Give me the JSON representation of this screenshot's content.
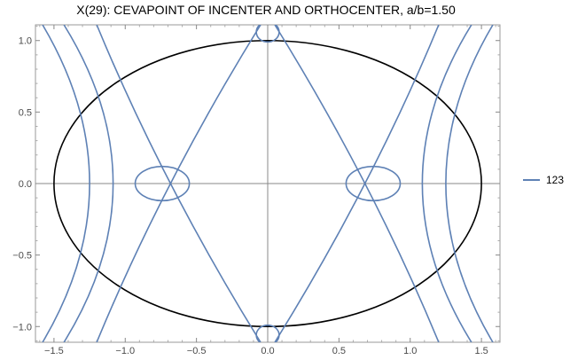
{
  "chart_data": {
    "type": "line",
    "title": "X(29): CEVAPOINT OF INCENTER AND ORTHOCENTER, a/b=1.50",
    "xlabel": "",
    "ylabel": "",
    "xlim": [
      -1.63,
      1.63
    ],
    "ylim": [
      -1.11,
      1.11
    ],
    "x_ticks": [
      {
        "value": -1.5,
        "label": "−1.5"
      },
      {
        "value": -1.0,
        "label": "−1.0"
      },
      {
        "value": -0.5,
        "label": "−0.5"
      },
      {
        "value": 0.0,
        "label": "0.0"
      },
      {
        "value": 0.5,
        "label": "0.5"
      },
      {
        "value": 1.0,
        "label": "1.0"
      },
      {
        "value": 1.5,
        "label": "1.5"
      }
    ],
    "y_ticks": [
      {
        "value": -1.0,
        "label": "−1.0"
      },
      {
        "value": -0.5,
        "label": "−0.5"
      },
      {
        "value": 0.0,
        "label": "0.0"
      },
      {
        "value": 0.5,
        "label": "0.5"
      },
      {
        "value": 1.0,
        "label": "1.0"
      }
    ],
    "grid": false,
    "legend_position": "right",
    "ellipse": {
      "a": 1.5,
      "b": 1.0,
      "color": "#000000"
    },
    "series": [
      {
        "name": "123",
        "color": "#5e81b5",
        "lines": [
          {
            "points": [
              [
                -1.58,
                1.11
              ],
              [
                -0.92,
                0.0
              ],
              [
                -1.58,
                -1.11
              ]
            ]
          },
          {
            "points": [
              [
                1.58,
                1.11
              ],
              [
                0.92,
                0.0
              ],
              [
                1.58,
                -1.11
              ]
            ]
          },
          {
            "points": [
              [
                -1.43,
                1.11
              ],
              [
                -0.74,
                0.0
              ],
              [
                -1.43,
                -1.11
              ]
            ]
          },
          {
            "points": [
              [
                1.43,
                1.11
              ],
              [
                0.74,
                0.0
              ],
              [
                1.43,
                -1.11
              ]
            ]
          },
          {
            "points": [
              [
                -1.2,
                -1.11
              ],
              [
                -0.74,
                0.0
              ],
              [
                -0.05,
                1.11
              ]
            ]
          },
          {
            "points": [
              [
                -1.2,
                1.11
              ],
              [
                -0.74,
                0.0
              ],
              [
                -0.05,
                -1.11
              ]
            ]
          },
          {
            "points": [
              [
                1.2,
                -1.11
              ],
              [
                0.74,
                0.0
              ],
              [
                0.05,
                1.11
              ]
            ]
          },
          {
            "points": [
              [
                1.2,
                1.11
              ],
              [
                0.74,
                0.0
              ],
              [
                0.05,
                -1.11
              ]
            ]
          }
        ],
        "loops": [
          {
            "cx": -0.74,
            "cy": 0.0,
            "rx": 0.19,
            "ry": 0.12
          },
          {
            "cx": 0.74,
            "cy": 0.0,
            "rx": 0.19,
            "ry": 0.12
          },
          {
            "cx": 0.0,
            "cy": 1.06,
            "rx": 0.08,
            "ry": 0.07
          },
          {
            "cx": 0.0,
            "cy": -1.06,
            "rx": 0.08,
            "ry": 0.07
          }
        ]
      }
    ]
  }
}
